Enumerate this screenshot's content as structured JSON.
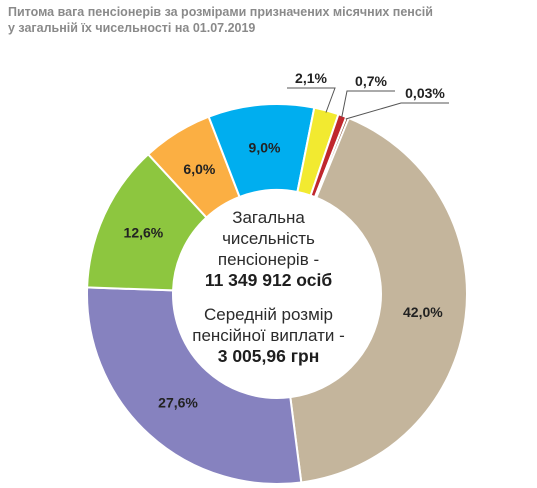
{
  "title": {
    "line1": "Питома вага пенсіонерів за розмірами призначених місячних пенсій",
    "line2": "у загальній їх чисельності на 01.07.2019"
  },
  "center": {
    "total_label_1": "Загальна",
    "total_label_2": "чисельність",
    "total_label_3": "пенсіонерів -",
    "total_value": "11 349 912 осіб",
    "avg_label_1": "Середній розмір",
    "avg_label_2": "пенсійної виплати -",
    "avg_value": "3 005,96 грн"
  },
  "chart_data": {
    "type": "pie",
    "variant": "donut",
    "slices": [
      {
        "label": "42,0%",
        "value": 42.0,
        "color": "#c4b59c"
      },
      {
        "label": "27,6%",
        "value": 27.6,
        "color": "#8682bf"
      },
      {
        "label": "12,6%",
        "value": 12.6,
        "color": "#8dc63f"
      },
      {
        "label": "6,0%",
        "value": 6.0,
        "color": "#fbaf43"
      },
      {
        "label": "9,0%",
        "value": 9.0,
        "color": "#00aeef"
      },
      {
        "label": "2,1%",
        "value": 2.1,
        "color": "#f2ea30"
      },
      {
        "label": "0,7%",
        "value": 0.7,
        "color": "#c0272d"
      },
      {
        "label": "0,03%",
        "value": 0.03,
        "color": "#7a3b1e"
      }
    ]
  }
}
